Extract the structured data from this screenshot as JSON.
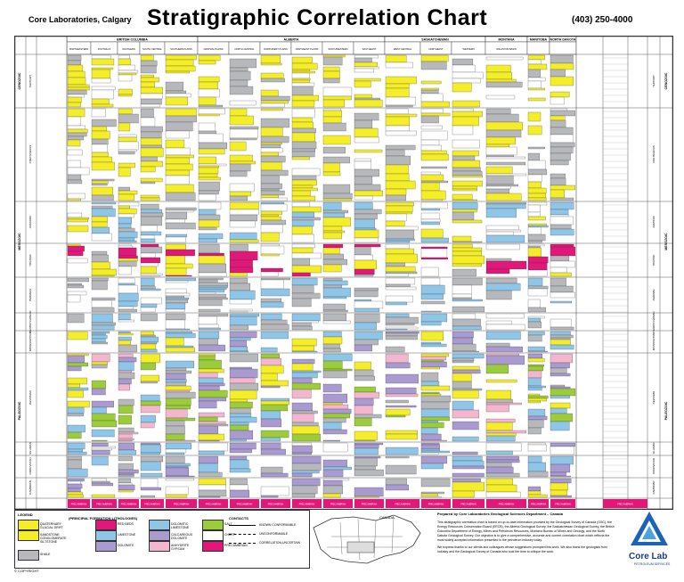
{
  "header": {
    "company": "Core Laboratories, Calgary",
    "title": "Stratigraphic Correlation Chart",
    "phone": "(403) 250-4000"
  },
  "chart": {
    "regions": [
      {
        "label": "BRITISH COLUMBIA"
      },
      {
        "label": "ALBERTA"
      },
      {
        "label": "SASKATCHEWAN"
      },
      {
        "label": "MONTANA"
      },
      {
        "label": "MANITOBA"
      },
      {
        "label": "NORTH DAKOTA"
      }
    ],
    "subregions": [
      {
        "label": "NORTHEASTERN"
      },
      {
        "label": "FOOTHILLS"
      },
      {
        "label": "SOUTHERN"
      },
      {
        "label": "SOUTH CENTRAL"
      },
      {
        "label": "SOUTHERN PLAINS"
      },
      {
        "label": "CENTRAL PLAINS"
      },
      {
        "label": "NORTH CENTRAL"
      },
      {
        "label": "NORTHWEST PLAINS"
      },
      {
        "label": "NORTHEAST PLAINS"
      },
      {
        "label": "SOUTHWESTERN"
      },
      {
        "label": "SOUTHEAST"
      },
      {
        "label": "WEST CENTRAL"
      },
      {
        "label": "NORTHEAST"
      },
      {
        "label": "WESTERN"
      },
      {
        "label": "WILLISTON BASIN"
      }
    ],
    "eras": [
      {
        "label": "CENOZOIC"
      },
      {
        "label": "MESOZOIC"
      },
      {
        "label": "PALEOZOIC"
      }
    ],
    "right_eras": [
      {
        "label": "CENOZOIC"
      },
      {
        "label": "MESOZOIC"
      },
      {
        "label": "PALEOZOIC"
      }
    ],
    "periods": [
      {
        "label": "TERTIARY"
      },
      {
        "label": "CRETACEOUS"
      },
      {
        "label": "JURASSIC"
      },
      {
        "label": "TRIASSIC"
      },
      {
        "label": "PERMIAN"
      },
      {
        "label": "PENNSYLVANIAN"
      },
      {
        "label": "MISSISSIPPIAN"
      },
      {
        "label": "DEVONIAN"
      },
      {
        "label": "SILURIAN"
      },
      {
        "label": "ORDOVICIAN"
      },
      {
        "label": "CAMBRIAN"
      }
    ],
    "precambrian_label": "PRECAMBRIAN",
    "colors": {
      "yellow": "#f4ee2a",
      "gray": "#b7b8bb",
      "blue": "#8fc6e8",
      "purple": "#a99ad0",
      "magenta": "#e0187a",
      "green": "#9ccc3b",
      "pink": "#f3b6cf"
    }
  },
  "legend": {
    "title": "LEGEND",
    "subtitle": "(PRINCIPAL FORMATION LITHOLOGIES)",
    "contacts_title": "CONTACTS",
    "items": [
      {
        "label": "QUATERNARY GLACIAL DRIFT",
        "color": "#f4ee2a"
      },
      {
        "label": "SANDSTONE CONGLOMERATE SILTSTONE",
        "color": "#f4ee2a"
      },
      {
        "label": "SHALE",
        "color": "#b7b8bb"
      },
      {
        "label": "RED BEDS",
        "color": "#e0187a"
      },
      {
        "label": "LIMESTONE",
        "color": "#8fc6e8"
      },
      {
        "label": "DOLOMITE",
        "color": "#a99ad0"
      },
      {
        "label": "DOLOMITIC LIMESTONE",
        "color": "#8fc6e8"
      },
      {
        "label": "CALCAREOUS DOLOMITE",
        "color": "#a99ad0"
      },
      {
        "label": "ANHYDRITE GYPSUM",
        "color": "#f3b6cf"
      },
      {
        "label": "SALT",
        "color": "#9ccc3b"
      },
      {
        "label": "CHERT",
        "color": "#ffffff"
      },
      {
        "label": "PRECAMBRIAN",
        "color": "#e0187a"
      }
    ],
    "contacts": [
      {
        "label": "KNOWN CONFORMABLE"
      },
      {
        "label": "UNCONFORMABLE"
      },
      {
        "label": "CORRELATION UNCERTAIN"
      }
    ],
    "copyright": "© COPYRIGHT"
  },
  "map": {
    "label": "CANADA"
  },
  "credits": {
    "prepared": "Prepared by Core Laboratories Geological Sciences Department – Canada",
    "body": "This stratigraphic correlation chart is based on up-to-date information provided by the Geological Survey of Canada (GSC), the Energy Resources Conservation Board (ERCB), the Alberta Geological Survey, the Saskatchewan Geological Survey, the British Columbia Department of Energy, Mines and Petroleum Resources, Montana Bureau of Mines and Geology, and the North Dakota Geological Survey. Our objective is to give a comprehensive, accurate and current correlation chart which reflects the most widely accepted information presented in the petroleum industry today.",
    "thanks": "We express thanks to our clients and colleagues whose suggestions prompted this work. We also thank the geologists from industry and the Geological Survey of Canada who took the time to critique the work."
  },
  "logo": {
    "name": "Core Lab",
    "tagline": "PETROLEUM SERVICES"
  }
}
